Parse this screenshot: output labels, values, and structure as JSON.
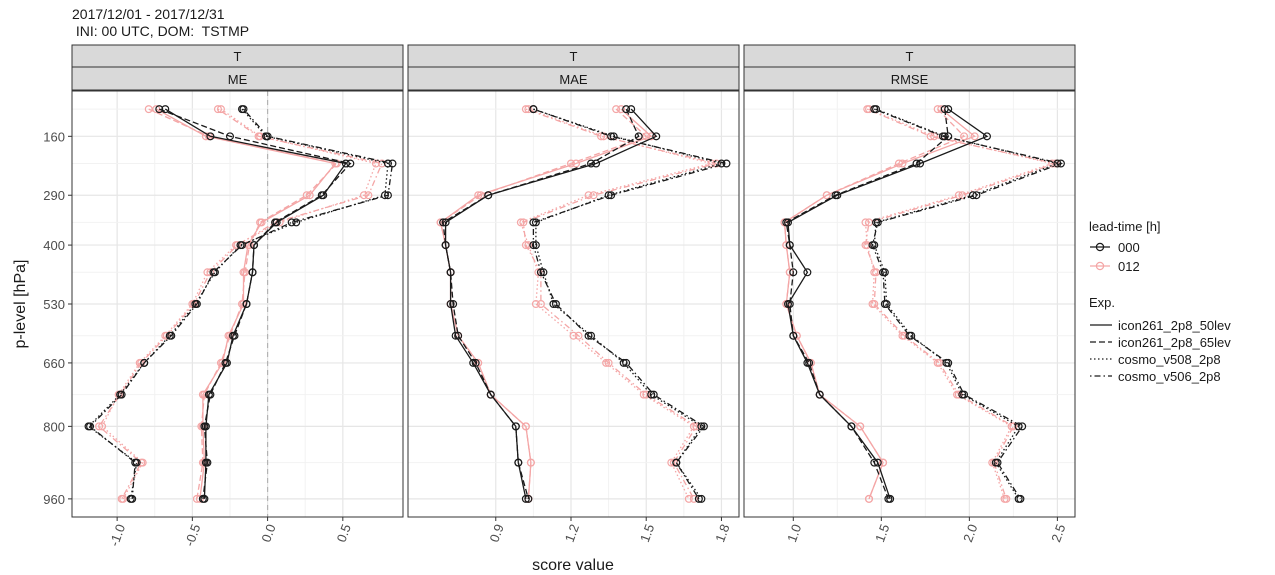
{
  "title_line1": "2017/12/01 - 2017/12/31",
  "title_line2": " INI: 00 UTC, DOM:  TSTMP",
  "facet_top_label": "T",
  "xlabel": "score value",
  "ylabel": "p-level [hPa]",
  "legend": {
    "leadtime_title": "lead-time [h]",
    "leadtime_entries": [
      {
        "label": "000",
        "color": "#1a1a1a"
      },
      {
        "label": "012",
        "color": "#f4a6a6"
      }
    ],
    "exp_title": "Exp.",
    "exp_entries": [
      {
        "label": "icon261_2p8_50lev",
        "dash": "solid"
      },
      {
        "label": "icon261_2p8_65lev",
        "dash": "dashed"
      },
      {
        "label": "cosmo_v508_2p8",
        "dash": "dotted"
      },
      {
        "label": "cosmo_v506_2p8",
        "dash": "dotdash"
      }
    ]
  },
  "chart_data": [
    {
      "type": "line",
      "panel": "ME",
      "x_ticks": [
        -1.0,
        -0.5,
        0.0,
        0.5
      ],
      "x_tick_labels": [
        "-1.0",
        "-0.5",
        "0.0",
        "0.5"
      ],
      "xlim": [
        -1.3,
        0.9
      ],
      "reference_line_x": 0.0,
      "y_ticks": [
        160,
        290,
        400,
        530,
        660,
        800,
        960
      ],
      "y_levels": [
        100,
        160,
        220,
        290,
        350,
        400,
        460,
        530,
        600,
        660,
        730,
        800,
        880,
        960
      ],
      "ylim": [
        60,
        1000
      ],
      "y_reversed": true,
      "series": [
        {
          "experiment": "icon261_2p8_50lev",
          "leadtime": "000",
          "values": [
            -0.68,
            -0.38,
            0.52,
            0.37,
            0.06,
            -0.09,
            -0.1,
            -0.14,
            -0.23,
            -0.27,
            -0.39,
            -0.41,
            -0.41,
            -0.42
          ]
        },
        {
          "experiment": "icon261_2p8_50lev",
          "leadtime": "012",
          "values": [
            -0.74,
            -0.41,
            0.45,
            0.28,
            -0.04,
            -0.13,
            -0.16,
            -0.16,
            -0.26,
            -0.3,
            -0.43,
            -0.43,
            -0.42,
            -0.45
          ]
        },
        {
          "experiment": "icon261_2p8_65lev",
          "leadtime": "000",
          "values": [
            -0.72,
            -0.25,
            0.55,
            0.36,
            0.05,
            -0.09,
            -0.1,
            -0.14,
            -0.22,
            -0.28,
            -0.38,
            -0.42,
            -0.4,
            -0.43
          ]
        },
        {
          "experiment": "icon261_2p8_65lev",
          "leadtime": "012",
          "values": [
            -0.79,
            -0.39,
            0.46,
            0.26,
            -0.05,
            -0.12,
            -0.15,
            -0.17,
            -0.25,
            -0.31,
            -0.42,
            -0.44,
            -0.43,
            -0.47
          ]
        },
        {
          "experiment": "cosmo_v508_2p8",
          "leadtime": "000",
          "values": [
            -0.17,
            -0.01,
            0.8,
            0.78,
            0.19,
            -0.18,
            -0.35,
            -0.48,
            -0.65,
            -0.82,
            -0.98,
            -1.19,
            -0.87,
            -0.91
          ]
        },
        {
          "experiment": "cosmo_v508_2p8",
          "leadtime": "012",
          "values": [
            -0.31,
            -0.05,
            0.72,
            0.64,
            0.08,
            -0.21,
            -0.4,
            -0.5,
            -0.68,
            -0.85,
            -0.99,
            -1.1,
            -0.83,
            -0.96
          ]
        },
        {
          "experiment": "cosmo_v506_2p8",
          "leadtime": "000",
          "values": [
            -0.16,
            0.0,
            0.83,
            0.8,
            0.16,
            -0.17,
            -0.36,
            -0.47,
            -0.64,
            -0.82,
            -0.97,
            -1.18,
            -0.88,
            -0.9
          ]
        },
        {
          "experiment": "cosmo_v506_2p8",
          "leadtime": "012",
          "values": [
            -0.33,
            -0.06,
            0.76,
            0.67,
            0.05,
            -0.2,
            -0.38,
            -0.49,
            -0.67,
            -0.84,
            -0.98,
            -1.12,
            -0.84,
            -0.97
          ]
        }
      ]
    },
    {
      "type": "line",
      "panel": "MAE",
      "x_ticks": [
        0.9,
        1.2,
        1.5,
        1.8
      ],
      "x_tick_labels": [
        "0.9",
        "1.2",
        "1.5",
        "1.8"
      ],
      "xlim": [
        0.55,
        1.87
      ],
      "y_ticks": [
        160,
        290,
        400,
        530,
        660,
        800,
        960
      ],
      "y_levels": [
        100,
        160,
        220,
        290,
        350,
        400,
        460,
        530,
        600,
        660,
        730,
        800,
        880,
        960
      ],
      "ylim": [
        60,
        1000
      ],
      "y_reversed": true,
      "series": [
        {
          "experiment": "icon261_2p8_50lev",
          "leadtime": "000",
          "values": [
            1.44,
            1.54,
            1.3,
            0.87,
            0.7,
            0.7,
            0.72,
            0.72,
            0.74,
            0.81,
            0.88,
            0.98,
            0.99,
            1.02
          ]
        },
        {
          "experiment": "icon261_2p8_50lev",
          "leadtime": "012",
          "values": [
            1.4,
            1.52,
            1.22,
            0.83,
            0.68,
            0.7,
            0.72,
            0.72,
            0.75,
            0.83,
            0.88,
            1.02,
            1.04,
            1.03
          ]
        },
        {
          "experiment": "icon261_2p8_65lev",
          "leadtime": "000",
          "values": [
            1.42,
            1.47,
            1.28,
            0.87,
            0.69,
            0.7,
            0.72,
            0.73,
            0.75,
            0.82,
            0.88,
            0.98,
            0.99,
            1.03
          ]
        },
        {
          "experiment": "icon261_2p8_65lev",
          "leadtime": "012",
          "values": [
            1.38,
            1.5,
            1.2,
            0.84,
            0.68,
            0.7,
            0.72,
            0.72,
            0.75,
            0.83,
            0.88,
            1.02,
            1.04,
            1.03
          ]
        },
        {
          "experiment": "cosmo_v508_2p8",
          "leadtime": "000",
          "values": [
            1.05,
            1.37,
            1.8,
            1.35,
            1.06,
            1.06,
            1.09,
            1.13,
            1.28,
            1.41,
            1.52,
            1.72,
            1.62,
            1.72
          ]
        },
        {
          "experiment": "cosmo_v508_2p8",
          "leadtime": "012",
          "values": [
            1.03,
            1.33,
            1.76,
            1.27,
            1.0,
            1.03,
            1.07,
            1.06,
            1.21,
            1.34,
            1.49,
            1.69,
            1.6,
            1.67
          ]
        },
        {
          "experiment": "cosmo_v506_2p8",
          "leadtime": "000",
          "values": [
            1.05,
            1.36,
            1.82,
            1.36,
            1.05,
            1.05,
            1.08,
            1.14,
            1.27,
            1.42,
            1.53,
            1.73,
            1.62,
            1.71
          ]
        },
        {
          "experiment": "cosmo_v506_2p8",
          "leadtime": "012",
          "values": [
            1.02,
            1.32,
            1.78,
            1.29,
            1.01,
            1.02,
            1.08,
            1.08,
            1.23,
            1.35,
            1.5,
            1.7,
            1.61,
            1.69
          ]
        }
      ]
    },
    {
      "type": "line",
      "panel": "RMSE",
      "x_ticks": [
        1.0,
        1.5,
        2.0,
        2.5
      ],
      "x_tick_labels": [
        "1.0",
        "1.5",
        "2.0",
        "2.5"
      ],
      "xlim": [
        0.72,
        2.6
      ],
      "y_ticks": [
        160,
        290,
        400,
        530,
        660,
        800,
        960
      ],
      "y_levels": [
        100,
        160,
        220,
        290,
        350,
        400,
        460,
        530,
        600,
        660,
        730,
        800,
        880,
        960
      ],
      "ylim": [
        60,
        1000
      ],
      "y_reversed": true,
      "series": [
        {
          "experiment": "icon261_2p8_50lev",
          "leadtime": "000",
          "values": [
            1.88,
            2.1,
            1.72,
            1.25,
            0.97,
            0.98,
            1.08,
            0.97,
            1.0,
            1.08,
            1.15,
            1.33,
            1.48,
            1.55
          ]
        },
        {
          "experiment": "icon261_2p8_50lev",
          "leadtime": "012",
          "values": [
            1.84,
            2.03,
            1.62,
            1.19,
            0.95,
            0.96,
            0.98,
            0.96,
            1.02,
            1.1,
            1.15,
            1.38,
            1.51,
            1.43
          ]
        },
        {
          "experiment": "icon261_2p8_65lev",
          "leadtime": "000",
          "values": [
            1.86,
            1.88,
            1.7,
            1.24,
            0.96,
            0.98,
            1.0,
            0.98,
            1.0,
            1.09,
            1.15,
            1.33,
            1.46,
            1.54
          ]
        },
        {
          "experiment": "icon261_2p8_65lev",
          "leadtime": "012",
          "values": [
            1.82,
            1.97,
            1.6,
            1.19,
            0.95,
            0.96,
            0.98,
            0.96,
            1.02,
            1.1,
            1.15,
            1.38,
            1.51,
            1.43
          ]
        },
        {
          "experiment": "cosmo_v508_2p8",
          "leadtime": "000",
          "values": [
            1.47,
            1.86,
            2.5,
            2.02,
            1.47,
            1.46,
            1.52,
            1.53,
            1.67,
            1.87,
            1.96,
            2.28,
            2.15,
            2.28
          ]
        },
        {
          "experiment": "cosmo_v508_2p8",
          "leadtime": "012",
          "values": [
            1.43,
            1.8,
            2.47,
            1.94,
            1.41,
            1.42,
            1.46,
            1.45,
            1.62,
            1.82,
            1.93,
            2.24,
            2.13,
            2.2
          ]
        },
        {
          "experiment": "cosmo_v506_2p8",
          "leadtime": "000",
          "values": [
            1.46,
            1.85,
            2.52,
            2.04,
            1.48,
            1.45,
            1.51,
            1.52,
            1.66,
            1.88,
            1.97,
            2.3,
            2.16,
            2.29
          ]
        },
        {
          "experiment": "cosmo_v506_2p8",
          "leadtime": "012",
          "values": [
            1.42,
            1.78,
            2.49,
            1.96,
            1.43,
            1.41,
            1.47,
            1.46,
            1.63,
            1.83,
            1.94,
            2.25,
            2.14,
            2.21
          ]
        }
      ]
    }
  ]
}
